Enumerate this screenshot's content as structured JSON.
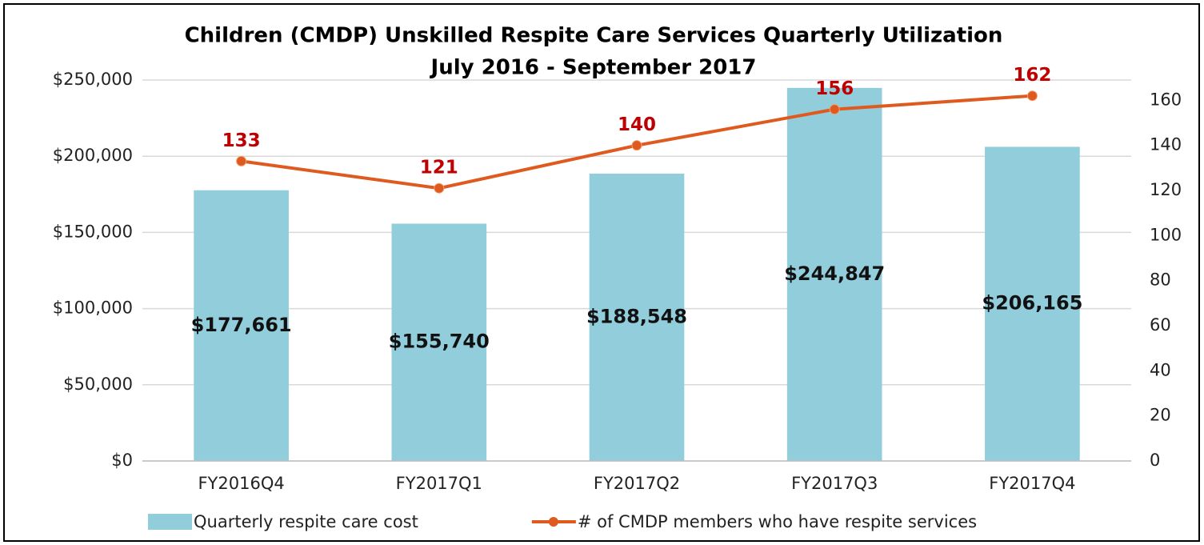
{
  "chart_data": {
    "type": "bar-line",
    "title": "Children (CMDP) Unskilled Respite Care Services Quarterly Utilization",
    "subtitle": "July 2016 - September 2017",
    "categories": [
      "FY2016Q4",
      "FY2017Q1",
      "FY2017Q2",
      "FY2017Q3",
      "FY2017Q4"
    ],
    "series": [
      {
        "name": "Quarterly respite care cost",
        "type": "bar",
        "color": "#92cddc",
        "values": [
          177661,
          155740,
          188548,
          244847,
          206165
        ],
        "value_labels": [
          "$177,661",
          "$155,740",
          "$188,548",
          "$244,847",
          "$206,165"
        ]
      },
      {
        "name": "# of CMDP members who have respite services",
        "type": "line",
        "axis": "y2",
        "color": "#df5a1f",
        "values": [
          133,
          121,
          140,
          156,
          162
        ]
      }
    ],
    "ylim": [
      0,
      250000
    ],
    "yticks": [
      {
        "value": 0,
        "label": "$0"
      },
      {
        "value": 50000,
        "label": "$50,000"
      },
      {
        "value": 100000,
        "label": "$100,000"
      },
      {
        "value": 150000,
        "label": "$150,000"
      },
      {
        "value": 200000,
        "label": "$200,000"
      },
      {
        "value": 250000,
        "label": "$250,000"
      }
    ],
    "y2lim": [
      0,
      169
    ],
    "y2ticks": [
      0,
      20,
      40,
      60,
      80,
      100,
      120,
      140,
      160
    ],
    "grid": true,
    "legend": "bottom"
  }
}
